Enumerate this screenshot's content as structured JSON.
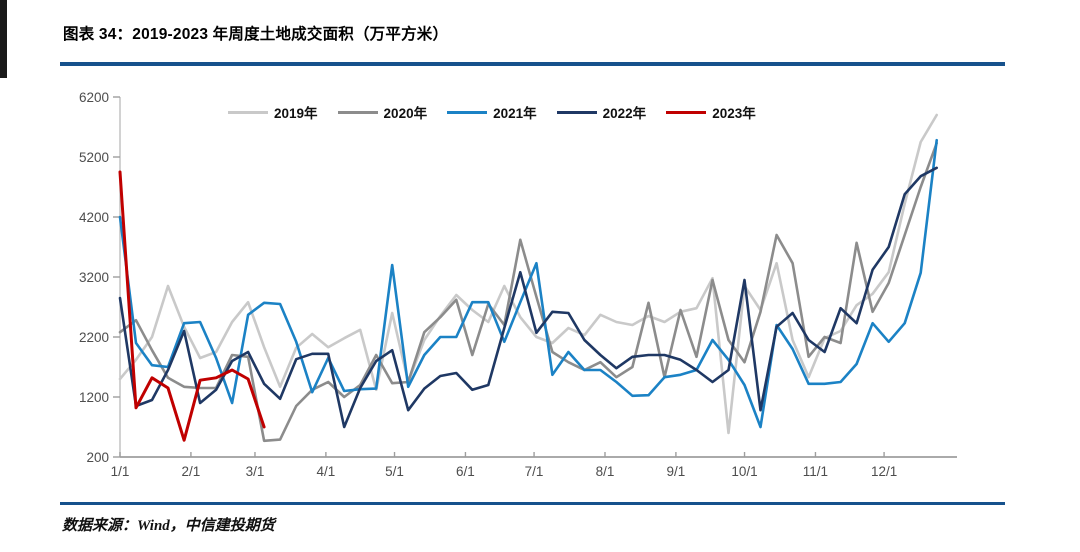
{
  "page": {
    "title": "图表 34：2019-2023 年周度土地成交面积（万平方米）",
    "source": "数据来源：Wind，中信建投期货",
    "accent_rule_color": "#16518C"
  },
  "chart_data": {
    "type": "line",
    "title": "2019-2023 年周度土地成交面积（万平方米）",
    "unit": "万平方米",
    "frequency": "weekly",
    "grid": false,
    "legend_position": "top-center",
    "x_axis": {
      "tick_labels": [
        "1/1",
        "2/1",
        "3/1",
        "4/1",
        "5/1",
        "6/1",
        "7/1",
        "8/1",
        "9/1",
        "10/1",
        "11/1",
        "12/1"
      ],
      "tick_day_offsets": [
        0,
        31,
        59,
        90,
        120,
        151,
        181,
        212,
        243,
        273,
        304,
        334
      ],
      "days_per_year": 365
    },
    "y_axis": {
      "min": 200,
      "max": 6200,
      "ticks": [
        200,
        1200,
        2200,
        3200,
        4200,
        5200,
        6200
      ]
    },
    "series": [
      {
        "name": "2019年",
        "color": "#C9C9C9",
        "values": [
          1500,
          1820,
          2200,
          3050,
          2370,
          1850,
          1950,
          2450,
          2780,
          2030,
          1370,
          2020,
          2250,
          2030,
          2180,
          2320,
          1320,
          2600,
          1450,
          2150,
          2550,
          2900,
          2650,
          2450,
          3050,
          2530,
          2200,
          2100,
          2350,
          2230,
          2570,
          2450,
          2400,
          2550,
          2450,
          2620,
          2680,
          3180,
          600,
          3050,
          2650,
          3430,
          2150,
          1530,
          2180,
          2300,
          2730,
          2920,
          3280,
          4420,
          5450,
          5900
        ]
      },
      {
        "name": "2020年",
        "color": "#8C8C8C",
        "values": [
          2280,
          2480,
          1980,
          1520,
          1370,
          1350,
          1350,
          1900,
          1870,
          470,
          490,
          1050,
          1320,
          1450,
          1200,
          1400,
          1900,
          1430,
          1450,
          2280,
          2530,
          2820,
          1900,
          2750,
          2400,
          3820,
          2870,
          1950,
          1780,
          1650,
          1780,
          1530,
          1700,
          2770,
          1530,
          2650,
          1870,
          3150,
          2150,
          1780,
          2620,
          3900,
          3430,
          1870,
          2200,
          2100,
          3770,
          2620,
          3100,
          3900,
          4700,
          5430
        ]
      },
      {
        "name": "2021年",
        "color": "#1B82C5",
        "values": [
          4200,
          2100,
          1730,
          1700,
          2430,
          2450,
          1850,
          1100,
          2570,
          2770,
          2750,
          2120,
          1280,
          1850,
          1300,
          1330,
          1340,
          3400,
          1370,
          1900,
          2200,
          2200,
          2780,
          2780,
          2120,
          2780,
          3430,
          1570,
          1950,
          1650,
          1650,
          1450,
          1220,
          1230,
          1530,
          1570,
          1650,
          2150,
          1820,
          1400,
          700,
          2400,
          2000,
          1420,
          1420,
          1450,
          1750,
          2430,
          2120,
          2430,
          3270,
          5480
        ]
      },
      {
        "name": "2022年",
        "color": "#1F3864",
        "values": [
          2850,
          1050,
          1150,
          1650,
          2300,
          1100,
          1320,
          1800,
          1950,
          1420,
          1170,
          1830,
          1920,
          1920,
          700,
          1350,
          1800,
          1980,
          980,
          1340,
          1550,
          1600,
          1320,
          1400,
          2350,
          3280,
          2270,
          2620,
          2600,
          2150,
          1900,
          1680,
          1870,
          1900,
          1900,
          1820,
          1650,
          1450,
          1650,
          3150,
          980,
          2370,
          2600,
          2150,
          1950,
          2680,
          2430,
          3320,
          3700,
          4580,
          4880,
          5020
        ]
      },
      {
        "name": "2023年",
        "color": "#C00000",
        "values": [
          4950,
          1020,
          1520,
          1350,
          480,
          1480,
          1520,
          1650,
          1500,
          700
        ]
      }
    ]
  }
}
